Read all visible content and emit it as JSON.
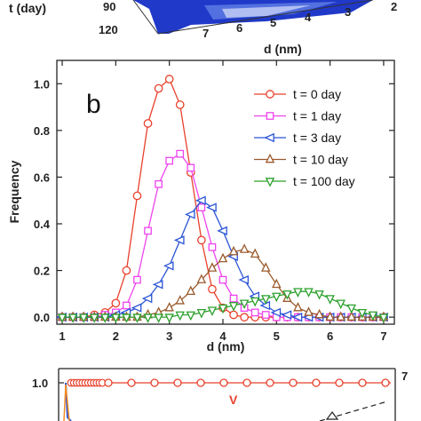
{
  "top_panel": {
    "t_label": "t (day)",
    "t_ticks": [
      "90",
      "120"
    ],
    "d_ticks": [
      "7",
      "6",
      "5",
      "4",
      "3",
      "2"
    ],
    "d_label": "d (nm)"
  },
  "chart_data": {
    "type": "line",
    "panel_label": "b",
    "xlabel": "d (nm)",
    "ylabel": "Frequency",
    "xlim": [
      0.9,
      7.2
    ],
    "ylim": [
      -0.03,
      1.1
    ],
    "xticks": [
      "1",
      "2",
      "3",
      "4",
      "5",
      "6",
      "7"
    ],
    "yticks": [
      "0.0",
      "0.2",
      "0.4",
      "0.6",
      "0.8",
      "1.0"
    ],
    "legend_position": "top-right",
    "series": [
      {
        "name": "t = 0 day",
        "color": "#e8412c",
        "marker": "circle",
        "x": [
          1.0,
          1.2,
          1.4,
          1.6,
          1.8,
          2.0,
          2.2,
          2.4,
          2.6,
          2.8,
          3.0,
          3.2,
          3.4,
          3.6,
          3.8,
          4.0,
          4.2,
          4.4,
          4.6,
          4.8,
          5.0,
          5.2,
          5.4,
          5.6,
          5.8,
          6.0,
          6.2,
          6.4,
          6.6,
          6.8,
          7.0
        ],
        "y": [
          0.0,
          0.0,
          0.0,
          0.01,
          0.02,
          0.06,
          0.2,
          0.52,
          0.83,
          0.98,
          1.02,
          0.91,
          0.62,
          0.33,
          0.12,
          0.04,
          0.01,
          0.0,
          0.0,
          0.0,
          0.0,
          0.0,
          0.0,
          0.0,
          0.0,
          0.0,
          0.0,
          0.0,
          0.0,
          0.0,
          0.0
        ]
      },
      {
        "name": "t = 1 day",
        "color": "#ee44ee",
        "marker": "square",
        "x": [
          1.0,
          1.2,
          1.4,
          1.6,
          1.8,
          2.0,
          2.2,
          2.4,
          2.6,
          2.8,
          3.0,
          3.2,
          3.4,
          3.6,
          3.8,
          4.0,
          4.2,
          4.4,
          4.6,
          4.8,
          5.0,
          5.2,
          5.4,
          5.6,
          5.8,
          6.0,
          6.2,
          6.4,
          6.6,
          6.8,
          7.0
        ],
        "y": [
          0.0,
          0.0,
          0.0,
          0.0,
          0.01,
          0.02,
          0.05,
          0.16,
          0.37,
          0.57,
          0.67,
          0.7,
          0.64,
          0.47,
          0.3,
          0.16,
          0.08,
          0.04,
          0.02,
          0.01,
          0.0,
          0.0,
          0.0,
          0.0,
          0.0,
          0.0,
          0.0,
          0.0,
          0.0,
          0.0,
          0.0
        ]
      },
      {
        "name": "t = 3 day",
        "color": "#2b55d6",
        "marker": "triangle-left",
        "x": [
          1.0,
          1.2,
          1.4,
          1.6,
          1.8,
          2.0,
          2.2,
          2.4,
          2.6,
          2.8,
          3.0,
          3.2,
          3.4,
          3.6,
          3.8,
          4.0,
          4.2,
          4.4,
          4.6,
          4.8,
          5.0,
          5.2,
          5.4,
          5.6,
          5.8,
          6.0,
          6.2,
          6.4,
          6.6,
          6.8,
          7.0
        ],
        "y": [
          0.0,
          0.0,
          0.0,
          0.0,
          0.0,
          0.01,
          0.02,
          0.04,
          0.08,
          0.14,
          0.22,
          0.33,
          0.44,
          0.5,
          0.47,
          0.37,
          0.26,
          0.16,
          0.09,
          0.05,
          0.02,
          0.01,
          0.0,
          0.0,
          0.0,
          0.0,
          0.0,
          0.0,
          0.0,
          0.0,
          0.0
        ]
      },
      {
        "name": "t = 10 day",
        "color": "#9a5a2c",
        "marker": "triangle-up",
        "x": [
          1.0,
          1.2,
          1.4,
          1.6,
          1.8,
          2.0,
          2.2,
          2.4,
          2.6,
          2.8,
          3.0,
          3.2,
          3.4,
          3.6,
          3.8,
          4.0,
          4.2,
          4.4,
          4.6,
          4.8,
          5.0,
          5.2,
          5.4,
          5.6,
          5.8,
          6.0,
          6.2,
          6.4,
          6.6,
          6.8,
          7.0
        ],
        "y": [
          0.0,
          0.0,
          0.0,
          0.0,
          0.0,
          0.0,
          0.0,
          0.0,
          0.01,
          0.02,
          0.04,
          0.07,
          0.11,
          0.16,
          0.21,
          0.25,
          0.28,
          0.29,
          0.27,
          0.21,
          0.14,
          0.08,
          0.04,
          0.02,
          0.01,
          0.0,
          0.0,
          0.0,
          0.0,
          0.0,
          0.0
        ]
      },
      {
        "name": "t = 100 day",
        "color": "#2ca02c",
        "marker": "triangle-down",
        "x": [
          1.0,
          1.2,
          1.4,
          1.6,
          1.8,
          2.0,
          2.2,
          2.4,
          2.6,
          2.8,
          3.0,
          3.2,
          3.4,
          3.6,
          3.8,
          4.0,
          4.2,
          4.4,
          4.6,
          4.8,
          5.0,
          5.2,
          5.4,
          5.6,
          5.8,
          6.0,
          6.2,
          6.4,
          6.6,
          6.8,
          7.0
        ],
        "y": [
          0.0,
          0.0,
          0.0,
          0.0,
          0.0,
          0.0,
          0.0,
          0.0,
          0.0,
          0.0,
          0.0,
          0.01,
          0.01,
          0.02,
          0.03,
          0.04,
          0.05,
          0.06,
          0.07,
          0.08,
          0.09,
          0.1,
          0.11,
          0.11,
          0.1,
          0.08,
          0.06,
          0.04,
          0.02,
          0.01,
          0.0
        ]
      }
    ]
  },
  "bottom_panel": {
    "y_tick": "1.0",
    "right_tick": "7",
    "v_label": "V"
  }
}
